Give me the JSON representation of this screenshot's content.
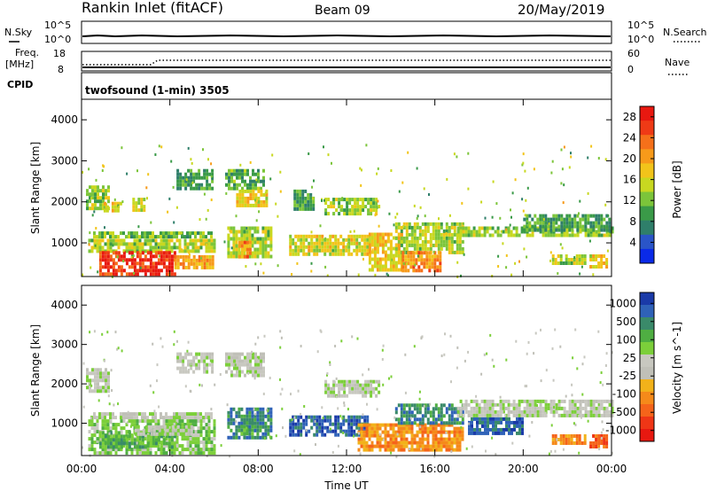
{
  "header": {
    "station": "Rankin Inlet (fitACF)",
    "beam": "Beam 09",
    "date": "20/May/2019"
  },
  "top_panels": {
    "nsky_label": "N.Sky",
    "nsky_tick_top": "10^5",
    "nsky_tick_bottom": "10^0",
    "nsearch_label": "N.Search",
    "nsearch_tick_top": "10^5",
    "nsearch_tick_bottom": "10^0",
    "freq_label": "Freq.",
    "freq_unit": "[MHz]",
    "freq_tick_top": "18",
    "freq_tick_bottom": "8",
    "nave_label": "Nave",
    "nave_tick_top": "60",
    "nave_tick_bottom": "0",
    "cpid_label": "CPID",
    "cpid_text": "twofsound (1-min) 3505"
  },
  "chart_data": [
    {
      "type": "heatmap",
      "name": "power",
      "ylabel": "Slant Range [km]",
      "xlabel": "Time UT",
      "xlim": [
        0,
        24
      ],
      "ylim": [
        180,
        4500
      ],
      "x_ticks": [
        "00:00",
        "04:00",
        "08:00",
        "12:00",
        "16:00",
        "20:00",
        "00:00"
      ],
      "y_ticks": [
        "1000",
        "2000",
        "3000",
        "4000"
      ],
      "colorbar": {
        "label": "Power [dB]",
        "ticks": [
          "4",
          "8",
          "12",
          "16",
          "20",
          "24",
          "28"
        ],
        "range": [
          0,
          30
        ],
        "colors": [
          "#0a2ae8",
          "#2a55c8",
          "#2f7f6a",
          "#3a9a48",
          "#7cc53a",
          "#c8d820",
          "#f2c41a",
          "#f79a1a",
          "#f5701a",
          "#ef3a16",
          "#e81810"
        ]
      },
      "regions": [
        {
          "t0": 0.2,
          "t1": 1.2,
          "r0": 1800,
          "r1": 2400,
          "v": 13
        },
        {
          "t0": 0.4,
          "t1": 5.9,
          "r0": 1180,
          "r1": 1280,
          "v": 11
        },
        {
          "t0": 0.3,
          "t1": 6.0,
          "r0": 800,
          "r1": 1100,
          "v": 14
        },
        {
          "t0": 0.8,
          "t1": 4.2,
          "r0": 200,
          "r1": 800,
          "v": 28
        },
        {
          "t0": 1.0,
          "t1": 1.8,
          "r0": 1750,
          "r1": 2000,
          "v": 17
        },
        {
          "t0": 2.3,
          "t1": 2.8,
          "r0": 1800,
          "r1": 2100,
          "v": 15
        },
        {
          "t0": 4.2,
          "t1": 6.0,
          "r0": 400,
          "r1": 700,
          "v": 20
        },
        {
          "t0": 4.3,
          "t1": 5.9,
          "r0": 2300,
          "r1": 2800,
          "v": 9
        },
        {
          "t0": 6.5,
          "t1": 8.3,
          "r0": 2300,
          "r1": 2800,
          "v": 10
        },
        {
          "t0": 7.0,
          "t1": 8.4,
          "r0": 1900,
          "r1": 2300,
          "v": 17
        },
        {
          "t0": 6.6,
          "t1": 8.6,
          "r0": 650,
          "r1": 1400,
          "v": 14
        },
        {
          "t0": 7.1,
          "t1": 7.7,
          "r0": 700,
          "r1": 1050,
          "v": 22
        },
        {
          "t0": 9.4,
          "t1": 13.0,
          "r0": 700,
          "r1": 1200,
          "v": 16
        },
        {
          "t0": 9.6,
          "t1": 10.5,
          "r0": 1800,
          "r1": 2300,
          "v": 9
        },
        {
          "t0": 11.0,
          "t1": 13.5,
          "r0": 1700,
          "r1": 2100,
          "v": 13
        },
        {
          "t0": 13.0,
          "t1": 14.5,
          "r0": 300,
          "r1": 1250,
          "v": 18
        },
        {
          "t0": 14.2,
          "t1": 17.3,
          "r0": 800,
          "r1": 1500,
          "v": 14
        },
        {
          "t0": 14.5,
          "t1": 16.2,
          "r0": 350,
          "r1": 800,
          "v": 22
        },
        {
          "t0": 17.0,
          "t1": 24.0,
          "r0": 1150,
          "r1": 1400,
          "v": 13
        },
        {
          "t0": 20.0,
          "t1": 23.9,
          "r0": 1350,
          "r1": 1700,
          "v": 9
        },
        {
          "t0": 21.3,
          "t1": 22.8,
          "r0": 520,
          "r1": 720,
          "v": 14
        },
        {
          "t0": 23.0,
          "t1": 23.8,
          "r0": 380,
          "r1": 720,
          "v": 17
        }
      ]
    },
    {
      "type": "heatmap",
      "name": "velocity",
      "ylabel": "Slant Range [km]",
      "xlabel": "Time UT",
      "xlim": [
        0,
        24
      ],
      "ylim": [
        180,
        4500
      ],
      "x_ticks": [
        "00:00",
        "04:00",
        "08:00",
        "12:00",
        "16:00",
        "20:00",
        "00:00"
      ],
      "y_ticks": [
        "1000",
        "2000",
        "3000",
        "4000"
      ],
      "colorbar": {
        "label": "Velocity [m s^-1]",
        "ticks": [
          "1000",
          "500",
          "100",
          "25",
          "-25",
          "-100",
          "-500",
          "-1000"
        ],
        "colors": [
          "#1a3aa8",
          "#2f62b8",
          "#3a8a6a",
          "#4fae42",
          "#7ccf3a",
          "#c8c8c0",
          "#c0c0b8",
          "#f2b21a",
          "#f58a1a",
          "#f5641a",
          "#ef3616",
          "#e81810"
        ]
      },
      "regions": [
        {
          "t0": 0.2,
          "t1": 1.2,
          "r0": 1800,
          "r1": 2400,
          "c": 5
        },
        {
          "t0": 0.4,
          "t1": 5.9,
          "r0": 1180,
          "r1": 1280,
          "c": 5
        },
        {
          "t0": 0.3,
          "t1": 6.0,
          "r0": 200,
          "r1": 1100,
          "c": 4
        },
        {
          "t0": 0.8,
          "t1": 4.2,
          "r0": 400,
          "r1": 800,
          "c": 3
        },
        {
          "t0": 2.4,
          "t1": 5.0,
          "r0": 700,
          "r1": 950,
          "c": 5
        },
        {
          "t0": 4.3,
          "t1": 5.9,
          "r0": 2300,
          "r1": 2800,
          "c": 5
        },
        {
          "t0": 6.5,
          "t1": 8.3,
          "r0": 2200,
          "r1": 2800,
          "c": 5
        },
        {
          "t0": 6.6,
          "t1": 8.6,
          "r0": 650,
          "r1": 1400,
          "c": 2
        },
        {
          "t0": 7.2,
          "t1": 7.8,
          "r0": 700,
          "r1": 1050,
          "c": 3
        },
        {
          "t0": 9.4,
          "t1": 13.0,
          "r0": 700,
          "r1": 1200,
          "c": 1
        },
        {
          "t0": 11.0,
          "t1": 13.5,
          "r0": 1700,
          "r1": 2100,
          "c": 5
        },
        {
          "t0": 12.5,
          "t1": 17.3,
          "r0": 350,
          "r1": 1000,
          "c": 8
        },
        {
          "t0": 14.2,
          "t1": 17.3,
          "r0": 1000,
          "r1": 1500,
          "c": 2
        },
        {
          "t0": 17.0,
          "t1": 24.0,
          "r0": 1150,
          "r1": 1600,
          "c": 5
        },
        {
          "t0": 17.5,
          "t1": 20.0,
          "r0": 700,
          "r1": 1150,
          "c": 1
        },
        {
          "t0": 21.3,
          "t1": 22.8,
          "r0": 520,
          "r1": 720,
          "c": 8
        },
        {
          "t0": 23.0,
          "t1": 23.8,
          "r0": 380,
          "r1": 720,
          "c": 9
        }
      ]
    }
  ]
}
